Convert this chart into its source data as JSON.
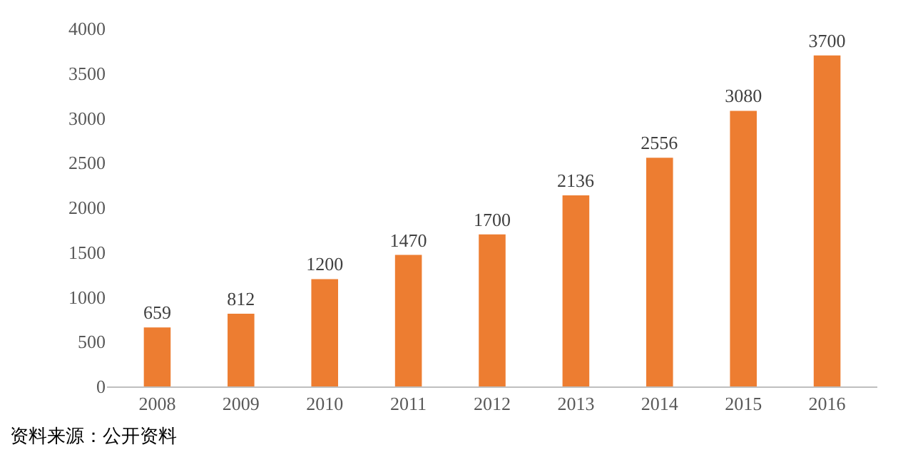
{
  "chart_data": {
    "type": "bar",
    "categories": [
      "2008",
      "2009",
      "2010",
      "2011",
      "2012",
      "2013",
      "2014",
      "2015",
      "2016"
    ],
    "values": [
      659,
      812,
      1200,
      1470,
      1700,
      2136,
      2556,
      3080,
      3700
    ],
    "color": "#ed7d31",
    "ylim": [
      0,
      4000
    ],
    "yticks": [
      0,
      500,
      1000,
      1500,
      2000,
      2500,
      3000,
      3500,
      4000
    ],
    "data_labels": true,
    "annotations": [
      "资料来源：公开资料"
    ]
  }
}
